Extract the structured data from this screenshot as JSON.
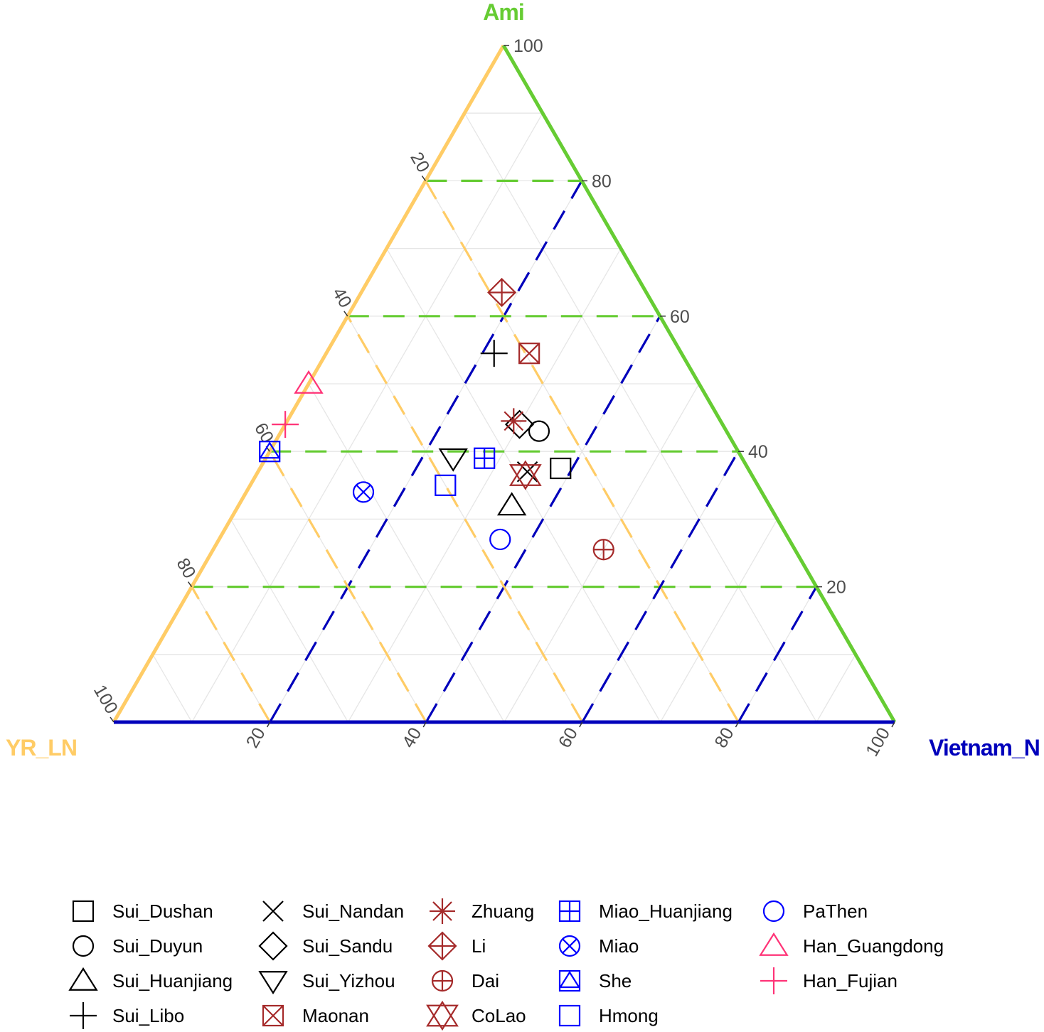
{
  "chart_data": {
    "type": "scatter",
    "subtype": "ternary",
    "axes": {
      "top": {
        "title": "Ami",
        "color": "#66cc33",
        "ticks": [
          "20",
          "40",
          "60",
          "80",
          "100"
        ]
      },
      "left": {
        "title": "YR_LN",
        "color": "#ffcc66",
        "ticks": [
          "20",
          "40",
          "60",
          "80",
          "100"
        ]
      },
      "right": {
        "title": "Vietnam_N",
        "color": "#0000bb",
        "ticks": [
          "20",
          "40",
          "60",
          "80",
          "100"
        ]
      }
    },
    "range": [
      0,
      100
    ],
    "grid": true,
    "legend_position": "bottom",
    "points": [
      {
        "name": "Sui_Dushan",
        "ami": 37.5,
        "yr_ln": 24.0,
        "vietnam_n": 38.5,
        "shape": "square",
        "color": "#000000"
      },
      {
        "name": "Sui_Duyun",
        "ami": 43.0,
        "yr_ln": 24.0,
        "vietnam_n": 33.0,
        "shape": "circle",
        "color": "#000000"
      },
      {
        "name": "Sui_Huanjiang",
        "ami": 32.0,
        "yr_ln": 33.0,
        "vietnam_n": 35.0,
        "shape": "triangle-up",
        "color": "#000000"
      },
      {
        "name": "Sui_Libo",
        "ami": 54.5,
        "yr_ln": 24.0,
        "vietnam_n": 21.5,
        "shape": "plus",
        "color": "#000000"
      },
      {
        "name": "Sui_Nandan",
        "ami": 37.0,
        "yr_ln": 28.5,
        "vietnam_n": 34.5,
        "shape": "cross",
        "color": "#000000"
      },
      {
        "name": "Sui_Sandu",
        "ami": 44.0,
        "yr_ln": 26.0,
        "vietnam_n": 30.0,
        "shape": "diamond",
        "color": "#000000"
      },
      {
        "name": "Sui_Yizhou",
        "ami": 39.0,
        "yr_ln": 37.0,
        "vietnam_n": 24.0,
        "shape": "triangle-down",
        "color": "#000000"
      },
      {
        "name": "Maonan",
        "ami": 54.5,
        "yr_ln": 19.5,
        "vietnam_n": 26.0,
        "shape": "square-cross",
        "color": "#a52a2a"
      },
      {
        "name": "Zhuang",
        "ami": 44.5,
        "yr_ln": 26.5,
        "vietnam_n": 29.0,
        "shape": "asterisk",
        "color": "#a52a2a"
      },
      {
        "name": "Li",
        "ami": 63.5,
        "yr_ln": 18.5,
        "vietnam_n": 18.0,
        "shape": "diamond-plus",
        "color": "#a52a2a"
      },
      {
        "name": "Dai",
        "ami": 25.5,
        "yr_ln": 24.5,
        "vietnam_n": 50.0,
        "shape": "circle-plus",
        "color": "#a52a2a"
      },
      {
        "name": "CoLao",
        "ami": 36.5,
        "yr_ln": 29.0,
        "vietnam_n": 34.5,
        "shape": "star-of-david",
        "color": "#a52a2a"
      },
      {
        "name": "Miao_Huanjiang",
        "ami": 39.0,
        "yr_ln": 33.0,
        "vietnam_n": 28.0,
        "shape": "square-plus",
        "color": "#0000ff"
      },
      {
        "name": "Miao",
        "ami": 34.0,
        "yr_ln": 51.0,
        "vietnam_n": 15.0,
        "shape": "circle-cross",
        "color": "#0000ff"
      },
      {
        "name": "She",
        "ami": 40.0,
        "yr_ln": 60.0,
        "vietnam_n": 0.0,
        "shape": "triangle-square",
        "color": "#0000ff"
      },
      {
        "name": "Hmong",
        "ami": 35.0,
        "yr_ln": 40.0,
        "vietnam_n": 25.0,
        "shape": "square",
        "color": "#0000ff"
      },
      {
        "name": "PaThen",
        "ami": 27.0,
        "yr_ln": 37.0,
        "vietnam_n": 36.0,
        "shape": "circle",
        "color": "#0000ff"
      },
      {
        "name": "Han_Guangdong",
        "ami": 50.0,
        "yr_ln": 50.0,
        "vietnam_n": 0.0,
        "shape": "triangle-up",
        "color": "#ff3377"
      },
      {
        "name": "Han_Fujian",
        "ami": 44.0,
        "yr_ln": 56.0,
        "vietnam_n": 0.0,
        "shape": "plus",
        "color": "#ff3377"
      }
    ]
  },
  "legend": {
    "items": [
      {
        "label": "Sui_Dushan",
        "shape": "square",
        "color": "#000000"
      },
      {
        "label": "Sui_Duyun",
        "shape": "circle",
        "color": "#000000"
      },
      {
        "label": "Sui_Huanjiang",
        "shape": "triangle-up",
        "color": "#000000"
      },
      {
        "label": "Sui_Libo",
        "shape": "plus",
        "color": "#000000"
      },
      {
        "label": "Sui_Nandan",
        "shape": "cross",
        "color": "#000000"
      },
      {
        "label": "Sui_Sandu",
        "shape": "diamond",
        "color": "#000000"
      },
      {
        "label": "Sui_Yizhou",
        "shape": "triangle-down",
        "color": "#000000"
      },
      {
        "label": "Maonan",
        "shape": "square-cross",
        "color": "#a52a2a"
      },
      {
        "label": "Zhuang",
        "shape": "asterisk",
        "color": "#a52a2a"
      },
      {
        "label": "Li",
        "shape": "diamond-plus",
        "color": "#a52a2a"
      },
      {
        "label": "Dai",
        "shape": "circle-plus",
        "color": "#a52a2a"
      },
      {
        "label": "CoLao",
        "shape": "star-of-david",
        "color": "#a52a2a"
      },
      {
        "label": "Miao_Huanjiang",
        "shape": "square-plus",
        "color": "#0000ff"
      },
      {
        "label": "Miao",
        "shape": "circle-cross",
        "color": "#0000ff"
      },
      {
        "label": "She",
        "shape": "triangle-square",
        "color": "#0000ff"
      },
      {
        "label": "Hmong",
        "shape": "square",
        "color": "#0000ff"
      },
      {
        "label": "PaThen",
        "shape": "circle",
        "color": "#0000ff"
      },
      {
        "label": "Han_Guangdong",
        "shape": "triangle-up",
        "color": "#ff3377"
      },
      {
        "label": "Han_Fujian",
        "shape": "plus",
        "color": "#ff3377"
      }
    ]
  }
}
